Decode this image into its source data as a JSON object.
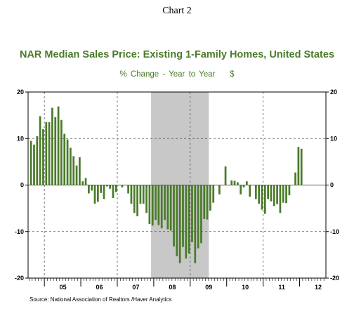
{
  "chart_data": {
    "type": "bar",
    "label": "Chart 2",
    "title": "NAR Median Sales Price: Existing 1-Family Homes, United States",
    "subtitle": "% Change - Year to Year",
    "unit": "$",
    "source": "Source:  National Association of Realtors /Haver Analytics",
    "ylim": [
      -20,
      20
    ],
    "yticks": [
      20,
      10,
      0,
      -10,
      -20
    ],
    "ytick_labels": [
      "20",
      "10",
      "0",
      "-10",
      "-20"
    ],
    "xtick_labels": [
      "05",
      "06",
      "07",
      "08",
      "09",
      "10",
      "11",
      "12"
    ],
    "x_start": "2004-08",
    "grid": "dashed",
    "recession": {
      "start": "2007-12",
      "end": "2009-06"
    },
    "bar_color": "#4a7b2a",
    "recession_color": "#c8c8c8",
    "series": [
      {
        "values": [
          9.5,
          8.7,
          10.5,
          14.8,
          12.0,
          13.5,
          13.5,
          16.6,
          14.6,
          16.9,
          14.0,
          11.0,
          9.8,
          8.0,
          6.2,
          4.2,
          6.0,
          0.8,
          1.5,
          -1.8,
          -1.2,
          -4.0,
          -3.6,
          -1.7,
          -3.0,
          -0.3,
          -0.8,
          -2.8,
          -1.5,
          0.0,
          -0.5,
          0.0,
          -1.8,
          -4.0,
          -6.0,
          -6.7,
          -4.0,
          -4.0,
          -6.0,
          -8.4,
          -8.7,
          -7.5,
          -8.6,
          -9.3,
          -7.5,
          -9.5,
          -9.8,
          -13.2,
          -15.3,
          -16.8,
          -13.3,
          -15.8,
          -14.7,
          -12.3,
          -16.8,
          -13.6,
          -12.5,
          -7.3,
          -7.4,
          -5.5,
          -3.8,
          0.0,
          -2.0,
          0.0,
          4.0,
          0.0,
          1.0,
          0.9,
          0.6,
          -2.0,
          -0.5,
          0.8,
          -2.5,
          0.0,
          -3.0,
          -4.0,
          -5.3,
          -6.2,
          -3.0,
          -3.5,
          -4.5,
          -4.1,
          -6.0,
          -3.8,
          -3.9,
          -2.2,
          0.0,
          2.7,
          8.2,
          7.8
        ]
      }
    ]
  }
}
